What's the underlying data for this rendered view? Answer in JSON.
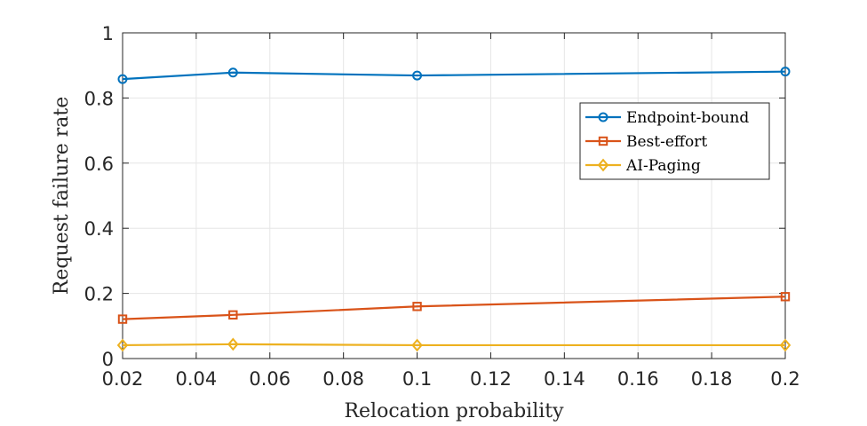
{
  "chart_data": {
    "type": "line",
    "title": "",
    "xlabel": "Relocation probability",
    "ylabel": "Request failure rate",
    "xlim": [
      0.02,
      0.2
    ],
    "ylim": [
      0,
      1
    ],
    "grid": true,
    "legend_position": "top-right",
    "x_ticks": [
      "0.02",
      "0.04",
      "0.06",
      "0.08",
      "0.1",
      "0.12",
      "0.14",
      "0.16",
      "0.18",
      "0.2"
    ],
    "y_ticks": [
      "0",
      "0.2",
      "0.4",
      "0.6",
      "0.8",
      "1"
    ],
    "x": [
      0.02,
      0.05,
      0.1,
      0.2
    ],
    "series": [
      {
        "name": "Endpoint-bound",
        "color": "#0072BD",
        "marker": "circle",
        "values": [
          0.858,
          0.878,
          0.869,
          0.881
        ]
      },
      {
        "name": "Best-effort",
        "color": "#D95319",
        "marker": "square",
        "values": [
          0.121,
          0.134,
          0.16,
          0.19
        ]
      },
      {
        "name": "AI-Paging",
        "color": "#EDB120",
        "marker": "diamond",
        "values": [
          0.041,
          0.044,
          0.041,
          0.041
        ]
      }
    ]
  }
}
